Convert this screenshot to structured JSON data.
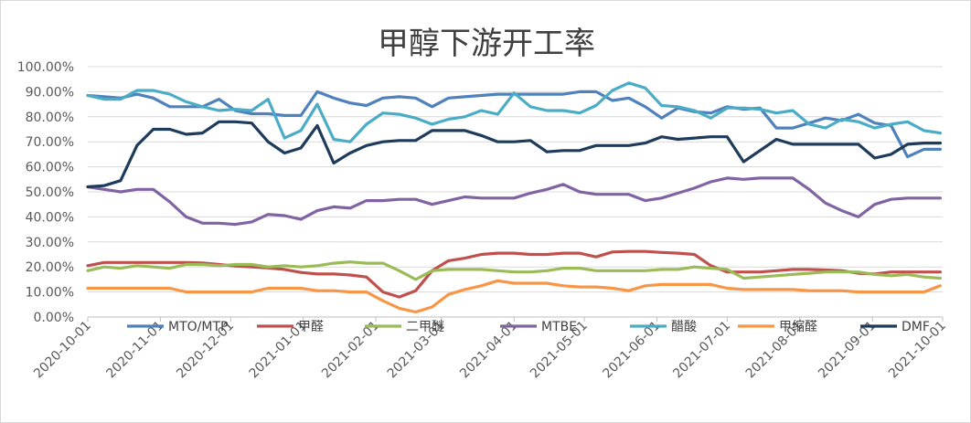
{
  "chart_data": {
    "type": "line",
    "title": "甲醇下游开工率",
    "xlabel": "",
    "ylabel": "",
    "ylim": [
      0,
      1
    ],
    "y_ticks": [
      0,
      0.1,
      0.2,
      0.3,
      0.4,
      0.5,
      0.6,
      0.7,
      0.8,
      0.9,
      1.0
    ],
    "y_tick_labels": [
      "0.00%",
      "10.00%",
      "20.00%",
      "30.00%",
      "40.00%",
      "50.00%",
      "60.00%",
      "70.00%",
      "80.00%",
      "90.00%",
      "100.00%"
    ],
    "x_tick_labels": [
      "2020-10-01",
      "2020-11-01",
      "2020-12-01",
      "2021-01-01",
      "2021-02-01",
      "2021-03-01",
      "2021-04-01",
      "2021-05-01",
      "2021-06-01",
      "2021-07-01",
      "2021-08-01",
      "2021-09-01",
      "2021-10-01"
    ],
    "x": [
      "2020-10-01",
      "2020-10-08",
      "2020-10-15",
      "2020-10-22",
      "2020-10-29",
      "2020-11-05",
      "2020-11-12",
      "2020-11-19",
      "2020-11-26",
      "2020-12-03",
      "2020-12-10",
      "2020-12-17",
      "2020-12-24",
      "2020-12-31",
      "2021-01-07",
      "2021-01-14",
      "2021-01-21",
      "2021-01-28",
      "2021-02-04",
      "2021-02-11",
      "2021-02-18",
      "2021-02-25",
      "2021-03-04",
      "2021-03-11",
      "2021-03-18",
      "2021-03-25",
      "2021-04-01",
      "2021-04-08",
      "2021-04-15",
      "2021-04-22",
      "2021-04-29",
      "2021-05-06",
      "2021-05-13",
      "2021-05-20",
      "2021-05-27",
      "2021-06-03",
      "2021-06-10",
      "2021-06-17",
      "2021-06-24",
      "2021-07-01",
      "2021-07-08",
      "2021-07-15",
      "2021-07-22",
      "2021-07-29",
      "2021-08-05",
      "2021-08-12",
      "2021-08-19",
      "2021-08-26",
      "2021-09-02",
      "2021-09-09",
      "2021-09-16",
      "2021-09-23",
      "2021-09-30"
    ],
    "grid": true,
    "legend_position": "bottom",
    "series": [
      {
        "name": "MTO/MTP",
        "color": "#4f81bd",
        "values": [
          0.885,
          0.88,
          0.875,
          0.89,
          0.875,
          0.84,
          0.84,
          0.84,
          0.87,
          0.825,
          0.812,
          0.812,
          0.805,
          0.805,
          0.9,
          0.875,
          0.855,
          0.845,
          0.875,
          0.88,
          0.875,
          0.84,
          0.875,
          0.88,
          0.885,
          0.89,
          0.89,
          0.89,
          0.89,
          0.89,
          0.9,
          0.9,
          0.865,
          0.875,
          0.84,
          0.795,
          0.835,
          0.82,
          0.815,
          0.84,
          0.83,
          0.835,
          0.755,
          0.755,
          0.775,
          0.795,
          0.785,
          0.81,
          0.775,
          0.765,
          0.64,
          0.67,
          0.67
        ]
      },
      {
        "name": "甲醛",
        "color": "#c0504d",
        "values": [
          0.205,
          0.218,
          0.218,
          0.218,
          0.218,
          0.218,
          0.218,
          0.216,
          0.21,
          0.204,
          0.2,
          0.196,
          0.19,
          0.178,
          0.172,
          0.172,
          0.168,
          0.16,
          0.1,
          0.08,
          0.105,
          0.185,
          0.225,
          0.235,
          0.25,
          0.255,
          0.255,
          0.25,
          0.25,
          0.255,
          0.255,
          0.24,
          0.26,
          0.262,
          0.262,
          0.258,
          0.255,
          0.25,
          0.205,
          0.18,
          0.18,
          0.18,
          0.185,
          0.19,
          0.19,
          0.188,
          0.185,
          0.175,
          0.172,
          0.18,
          0.18,
          0.18,
          0.18
        ]
      },
      {
        "name": "二甲醚",
        "color": "#9bbb59",
        "values": [
          0.185,
          0.2,
          0.195,
          0.205,
          0.2,
          0.195,
          0.21,
          0.21,
          0.205,
          0.21,
          0.21,
          0.2,
          0.205,
          0.2,
          0.205,
          0.215,
          0.22,
          0.215,
          0.215,
          0.185,
          0.15,
          0.185,
          0.19,
          0.19,
          0.19,
          0.185,
          0.18,
          0.18,
          0.185,
          0.195,
          0.195,
          0.185,
          0.185,
          0.185,
          0.185,
          0.19,
          0.19,
          0.2,
          0.195,
          0.19,
          0.155,
          0.16,
          0.165,
          0.17,
          0.175,
          0.18,
          0.18,
          0.18,
          0.17,
          0.165,
          0.17,
          0.16,
          0.155
        ]
      },
      {
        "name": "MTBE",
        "color": "#8064a2",
        "values": [
          0.52,
          0.51,
          0.5,
          0.51,
          0.51,
          0.46,
          0.4,
          0.375,
          0.375,
          0.37,
          0.38,
          0.41,
          0.405,
          0.39,
          0.425,
          0.44,
          0.435,
          0.465,
          0.465,
          0.47,
          0.47,
          0.45,
          0.465,
          0.48,
          0.475,
          0.475,
          0.475,
          0.495,
          0.51,
          0.53,
          0.5,
          0.49,
          0.49,
          0.49,
          0.465,
          0.475,
          0.495,
          0.515,
          0.54,
          0.555,
          0.55,
          0.555,
          0.555,
          0.555,
          0.51,
          0.455,
          0.425,
          0.4,
          0.45,
          0.47,
          0.475,
          0.475,
          0.475
        ]
      },
      {
        "name": "醋酸",
        "color": "#4bacc6",
        "values": [
          0.885,
          0.87,
          0.87,
          0.905,
          0.905,
          0.89,
          0.86,
          0.84,
          0.825,
          0.83,
          0.825,
          0.87,
          0.715,
          0.745,
          0.85,
          0.71,
          0.7,
          0.77,
          0.815,
          0.81,
          0.795,
          0.77,
          0.79,
          0.8,
          0.825,
          0.81,
          0.895,
          0.84,
          0.825,
          0.825,
          0.815,
          0.845,
          0.905,
          0.935,
          0.915,
          0.845,
          0.84,
          0.825,
          0.795,
          0.835,
          0.835,
          0.83,
          0.815,
          0.825,
          0.77,
          0.755,
          0.79,
          0.78,
          0.755,
          0.77,
          0.78,
          0.745,
          0.735
        ]
      },
      {
        "name": "甲缩醛",
        "color": "#f79646",
        "values": [
          0.115,
          0.115,
          0.115,
          0.115,
          0.115,
          0.115,
          0.1,
          0.1,
          0.1,
          0.1,
          0.1,
          0.115,
          0.115,
          0.115,
          0.105,
          0.105,
          0.1,
          0.1,
          0.065,
          0.035,
          0.02,
          0.04,
          0.09,
          0.11,
          0.125,
          0.145,
          0.135,
          0.135,
          0.135,
          0.125,
          0.12,
          0.12,
          0.115,
          0.105,
          0.125,
          0.13,
          0.13,
          0.13,
          0.13,
          0.115,
          0.11,
          0.11,
          0.11,
          0.11,
          0.105,
          0.105,
          0.105,
          0.1,
          0.1,
          0.1,
          0.1,
          0.1,
          0.125
        ]
      },
      {
        "name": "DMF",
        "color": "#1f3b5c",
        "values": [
          0.52,
          0.525,
          0.545,
          0.685,
          0.75,
          0.75,
          0.73,
          0.735,
          0.78,
          0.78,
          0.775,
          0.7,
          0.655,
          0.675,
          0.765,
          0.615,
          0.655,
          0.685,
          0.7,
          0.705,
          0.705,
          0.745,
          0.745,
          0.745,
          0.725,
          0.7,
          0.7,
          0.705,
          0.66,
          0.665,
          0.665,
          0.685,
          0.685,
          0.685,
          0.695,
          0.72,
          0.71,
          0.715,
          0.72,
          0.72,
          0.62,
          0.665,
          0.71,
          0.69,
          0.69,
          0.69,
          0.69,
          0.69,
          0.635,
          0.65,
          0.69,
          0.695,
          0.695
        ]
      }
    ]
  }
}
